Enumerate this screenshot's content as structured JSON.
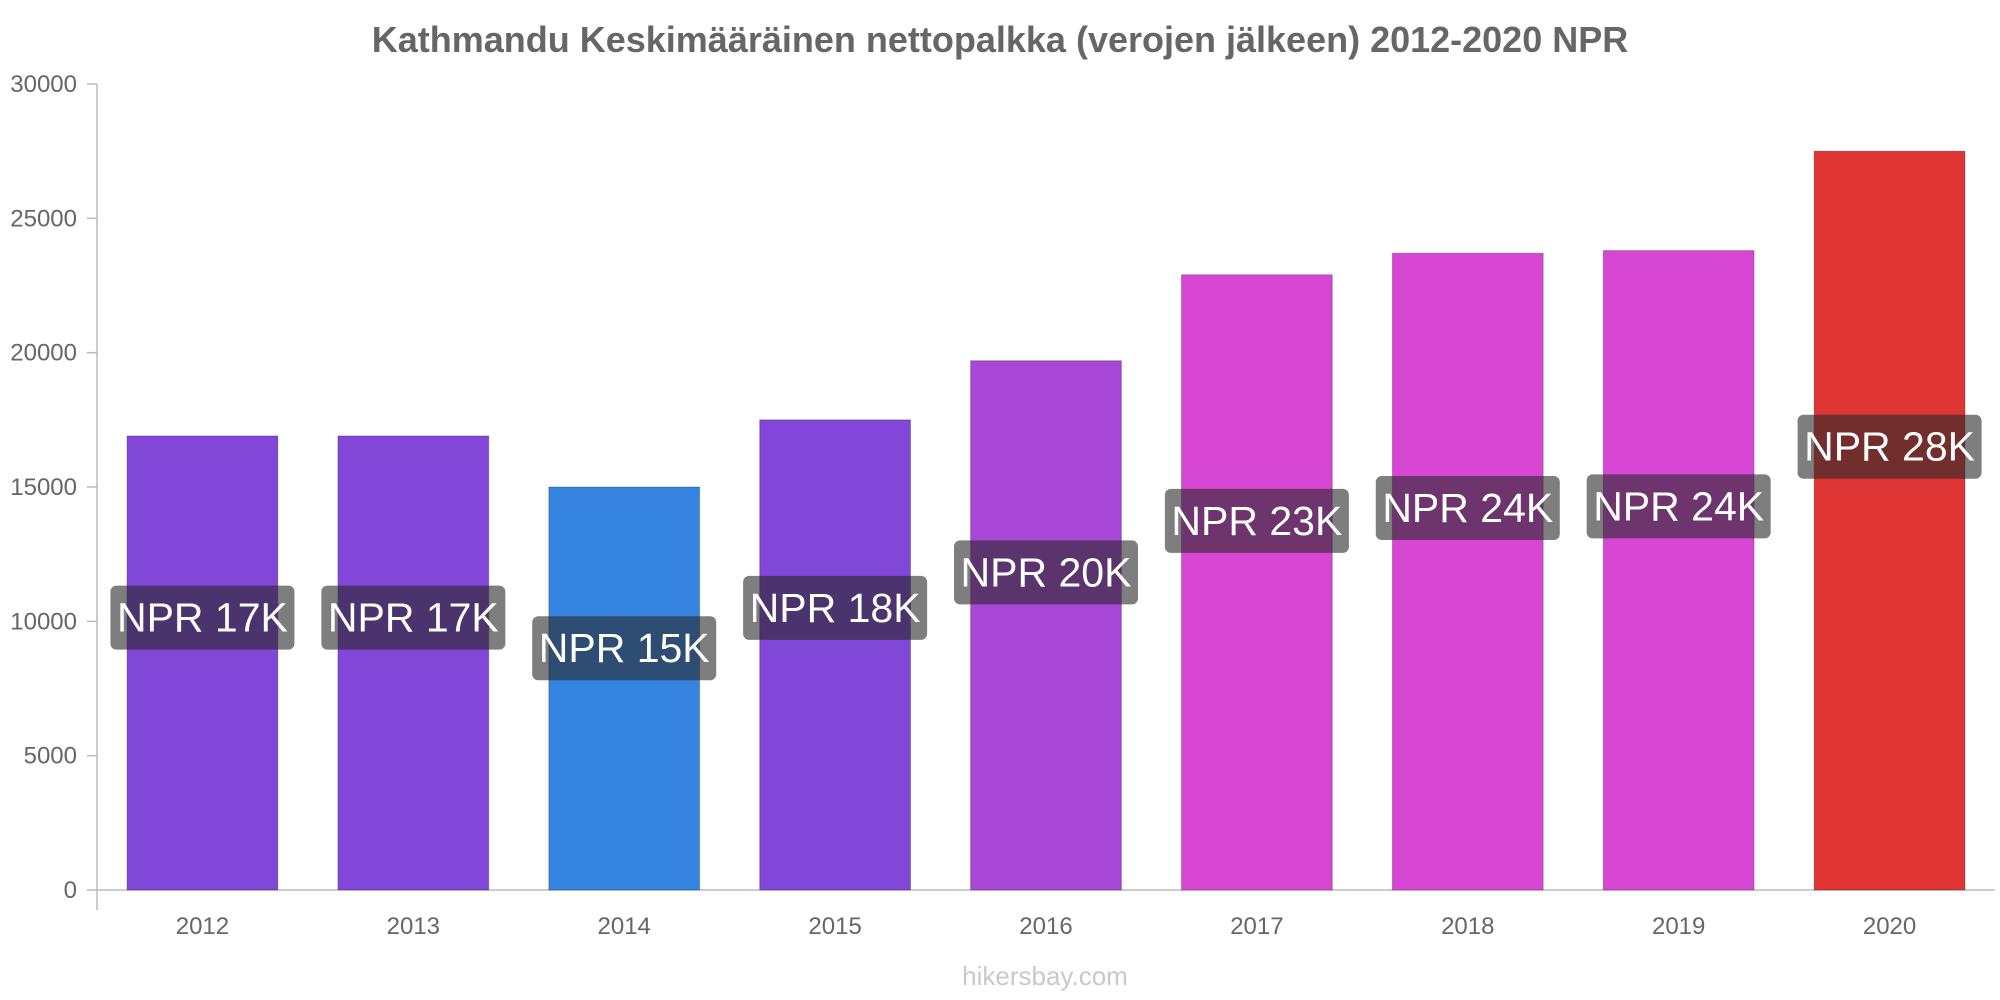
{
  "chart_data": {
    "type": "bar",
    "title": "Kathmandu Keskimääräinen nettopalkka (verojen jälkeen) 2012-2020 NPR",
    "xlabel": "",
    "ylabel": "",
    "ylim": [
      0,
      30000
    ],
    "y_ticks": [
      0,
      5000,
      10000,
      15000,
      20000,
      25000,
      30000
    ],
    "categories": [
      "2012",
      "2013",
      "2014",
      "2015",
      "2016",
      "2017",
      "2018",
      "2019",
      "2020"
    ],
    "values": [
      16900,
      16900,
      15000,
      17500,
      19700,
      22900,
      23700,
      23800,
      27500
    ],
    "value_labels": [
      "NPR 17K",
      "NPR 17K",
      "NPR 15K",
      "NPR 18K",
      "NPR 20K",
      "NPR 23K",
      "NPR 24K",
      "NPR 24K",
      "NPR 28K"
    ],
    "bar_colors": [
      "#8047d8",
      "#8047d8",
      "#3584e0",
      "#8047d8",
      "#a847d8",
      "#d747d4",
      "#d747d4",
      "#d747d4",
      "#e03535"
    ],
    "grid": false,
    "legend": "none"
  },
  "watermark": "hikersbay.com"
}
